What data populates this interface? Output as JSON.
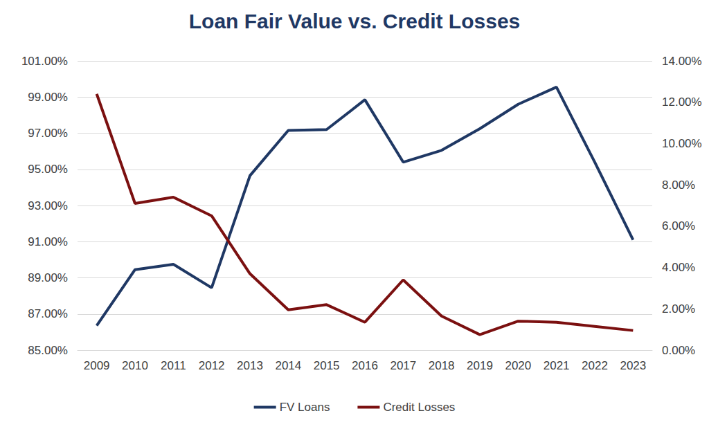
{
  "chart_data": {
    "type": "line",
    "title": "Loan Fair Value vs. Credit Losses",
    "categories": [
      "2009",
      "2010",
      "2011",
      "2012",
      "2013",
      "2014",
      "2015",
      "2016",
      "2017",
      "2018",
      "2019",
      "2020",
      "2021",
      "2022",
      "2023"
    ],
    "series": [
      {
        "name": "FV Loans",
        "color": "#1f3864",
        "values": [
          86.35,
          89.45,
          89.75,
          88.45,
          94.65,
          97.15,
          97.2,
          98.85,
          95.4,
          96.05,
          97.25,
          98.6,
          99.55,
          95.4,
          91.1
        ]
      },
      {
        "name": "Credit Losses",
        "color": "#7b1010",
        "axis": "y2",
        "values": [
          12.4,
          7.1,
          7.4,
          6.5,
          3.7,
          1.95,
          2.2,
          1.35,
          3.4,
          1.65,
          0.75,
          1.4,
          1.35,
          1.15,
          0.95
        ]
      }
    ],
    "ylim": [
      85,
      101
    ],
    "yticks": [
      {
        "value": 85,
        "label": "85.00%"
      },
      {
        "value": 87,
        "label": "87.00%"
      },
      {
        "value": 89,
        "label": "89.00%"
      },
      {
        "value": 91,
        "label": "91.00%"
      },
      {
        "value": 93,
        "label": "93.00%"
      },
      {
        "value": 95,
        "label": "95.00%"
      },
      {
        "value": 97,
        "label": "97.00%"
      },
      {
        "value": 99,
        "label": "99.00%"
      },
      {
        "value": 101,
        "label": "101.00%"
      }
    ],
    "y2lim": [
      0,
      14
    ],
    "y2ticks": [
      {
        "value": 0,
        "label": "0.00%"
      },
      {
        "value": 2,
        "label": "2.00%"
      },
      {
        "value": 4,
        "label": "4.00%"
      },
      {
        "value": 6,
        "label": "6.00%"
      },
      {
        "value": 8,
        "label": "8.00%"
      },
      {
        "value": 10,
        "label": "10.00%"
      },
      {
        "value": 12,
        "label": "12.00%"
      },
      {
        "value": 14,
        "label": "14.00%"
      }
    ],
    "grid": true,
    "legend": "bottom"
  }
}
